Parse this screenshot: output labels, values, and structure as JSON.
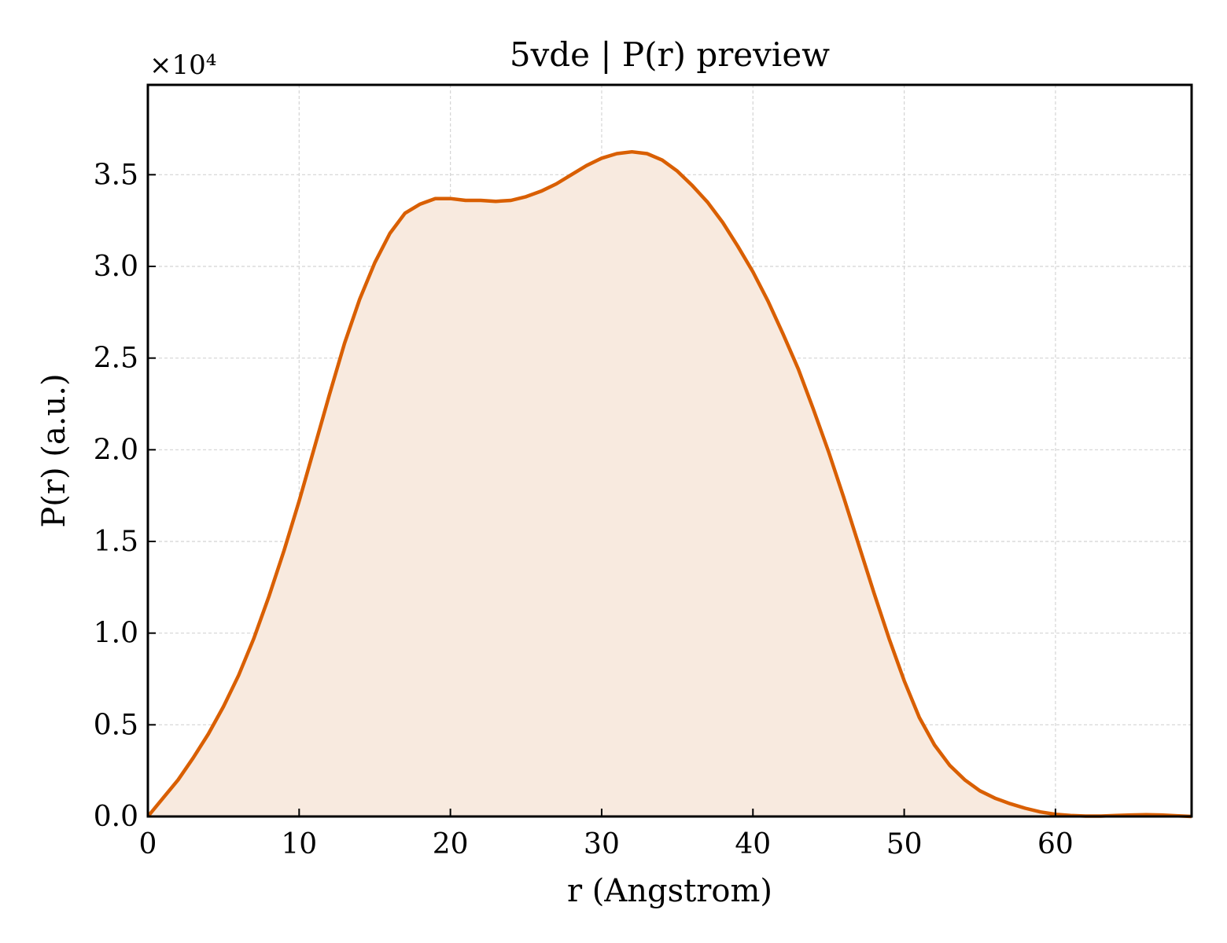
{
  "chart_data": {
    "type": "area",
    "title": "5vde | P(r) preview",
    "xlabel": "r (Angstrom)",
    "ylabel": "P(r) (a.u.)",
    "y_offset_label": "×10⁴",
    "xlim": [
      0,
      69
    ],
    "ylim": [
      0,
      3.99
    ],
    "y_scale_factor": 10000,
    "xticks": [
      0,
      10,
      20,
      30,
      40,
      50,
      60
    ],
    "xtick_labels": [
      "0",
      "10",
      "20",
      "30",
      "40",
      "50",
      "60"
    ],
    "yticks": [
      0,
      0.5,
      1.0,
      1.5,
      2.0,
      2.5,
      3.0,
      3.5
    ],
    "ytick_labels": [
      "0.0",
      "0.5",
      "1.0",
      "1.5",
      "2.0",
      "2.5",
      "3.0",
      "3.5"
    ],
    "grid": true,
    "line_color": "#d95f02",
    "fill_color": "#f8eadf",
    "series": [
      {
        "x": [
          0,
          1,
          2,
          3,
          4,
          5,
          6,
          7,
          8,
          9,
          10,
          11,
          12,
          13,
          14,
          15,
          16,
          17,
          18,
          19,
          20,
          21,
          22,
          23,
          24,
          25,
          26,
          27,
          28,
          29,
          30,
          31,
          32,
          33,
          34,
          35,
          36,
          37,
          38,
          39,
          40,
          41,
          42,
          43,
          44,
          45,
          46,
          47,
          48,
          49,
          50,
          51,
          52,
          53,
          54,
          55,
          56,
          57,
          58,
          59,
          60,
          61,
          62,
          63,
          64,
          65,
          66,
          67,
          68,
          69
        ],
        "y": [
          0.0,
          0.1,
          0.2,
          0.32,
          0.45,
          0.6,
          0.77,
          0.97,
          1.2,
          1.45,
          1.72,
          2.01,
          2.3,
          2.58,
          2.82,
          3.02,
          3.18,
          3.29,
          3.34,
          3.37,
          3.37,
          3.36,
          3.36,
          3.355,
          3.36,
          3.38,
          3.41,
          3.45,
          3.5,
          3.55,
          3.59,
          3.615,
          3.625,
          3.615,
          3.58,
          3.52,
          3.44,
          3.35,
          3.24,
          3.11,
          2.97,
          2.81,
          2.63,
          2.44,
          2.22,
          1.99,
          1.74,
          1.48,
          1.22,
          0.97,
          0.74,
          0.54,
          0.39,
          0.28,
          0.2,
          0.14,
          0.1,
          0.07,
          0.045,
          0.025,
          0.012,
          0.005,
          0.002,
          0.002,
          0.005,
          0.008,
          0.01,
          0.008,
          0.004,
          0.0
        ]
      }
    ]
  }
}
